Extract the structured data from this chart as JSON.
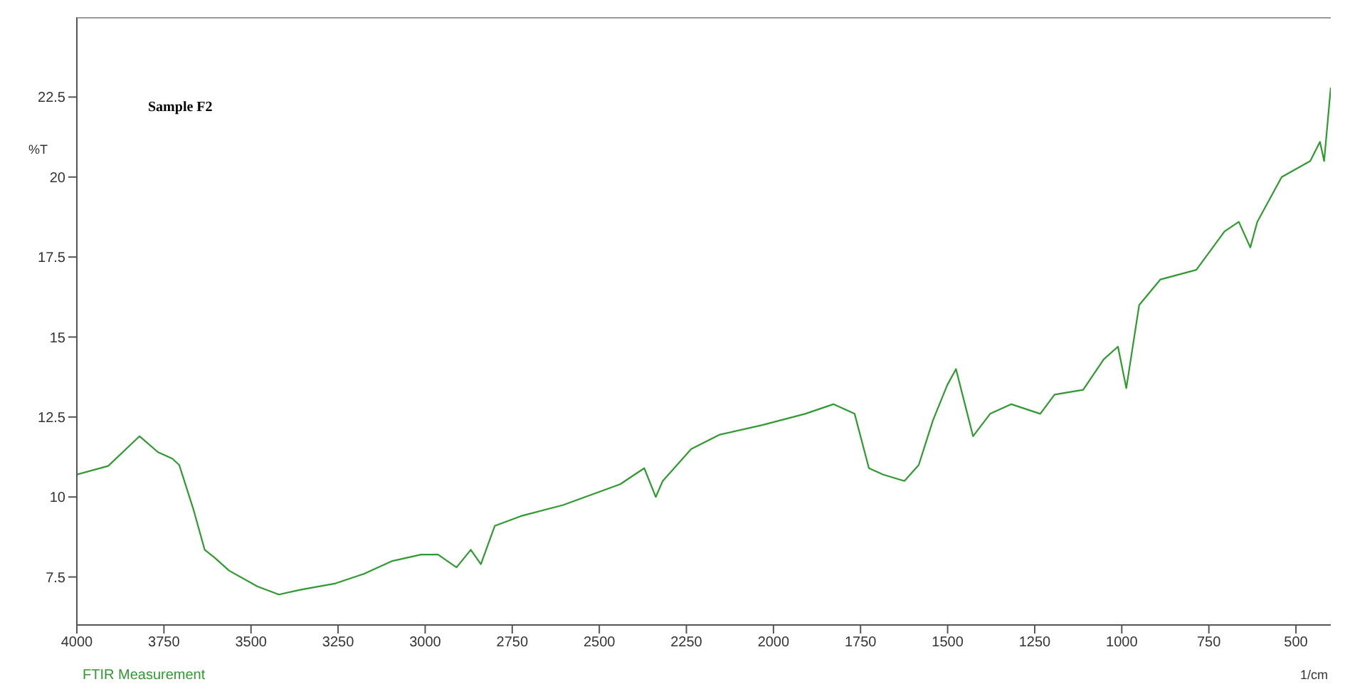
{
  "chart_data": {
    "type": "line",
    "title": "Sample F2",
    "ylabel": "%T",
    "xlabel": "1/cm",
    "annotations": [
      "FTIR Measurement"
    ],
    "x": [
      4000,
      3910,
      3849,
      3820,
      3767,
      3726,
      3706,
      3665,
      3633,
      3604,
      3563,
      3481,
      3420,
      3359,
      3257,
      3175,
      3094,
      3012,
      2963,
      2910,
      2869,
      2840,
      2800,
      2726,
      2604,
      2440,
      2371,
      2338,
      2318,
      2236,
      2154,
      2032,
      1909,
      1828,
      1767,
      1726,
      1685,
      1624,
      1583,
      1542,
      1501,
      1476,
      1448,
      1427,
      1378,
      1317,
      1234,
      1193,
      1111,
      1052,
      1011,
      987,
      950,
      889,
      786,
      705,
      664,
      631,
      611,
      541,
      459,
      431,
      419,
      400
    ],
    "series": [
      {
        "color": "#2f9a2f",
        "values": [
          10.7,
          10.97,
          11.6,
          11.9,
          11.4,
          11.2,
          11.0,
          9.6,
          8.35,
          8.1,
          7.7,
          7.2,
          6.95,
          7.1,
          7.3,
          7.6,
          8.0,
          8.2,
          8.2,
          7.8,
          8.35,
          7.9,
          9.1,
          9.4,
          9.75,
          10.4,
          10.9,
          10.0,
          10.5,
          11.5,
          11.95,
          12.25,
          12.6,
          12.9,
          12.6,
          10.9,
          10.7,
          10.5,
          11.0,
          12.4,
          13.5,
          14.0,
          12.8,
          11.9,
          12.6,
          12.9,
          12.6,
          13.2,
          13.35,
          14.3,
          14.7,
          13.4,
          16.0,
          16.8,
          17.1,
          18.3,
          18.6,
          17.8,
          18.6,
          20.0,
          20.5,
          21.1,
          20.5,
          22.8
        ]
      }
    ],
    "xlim": [
      4000,
      400
    ],
    "ylim": [
      6,
      25
    ],
    "xticks": [
      4000,
      3750,
      3500,
      3250,
      3000,
      2750,
      2500,
      2250,
      2000,
      1750,
      1500,
      1250,
      1000,
      750,
      500
    ],
    "yticks": [
      7.5,
      10,
      12.5,
      15,
      17.5,
      20,
      22.5
    ],
    "grid": false,
    "legend": false,
    "marker": "none",
    "line_style": "solid"
  }
}
